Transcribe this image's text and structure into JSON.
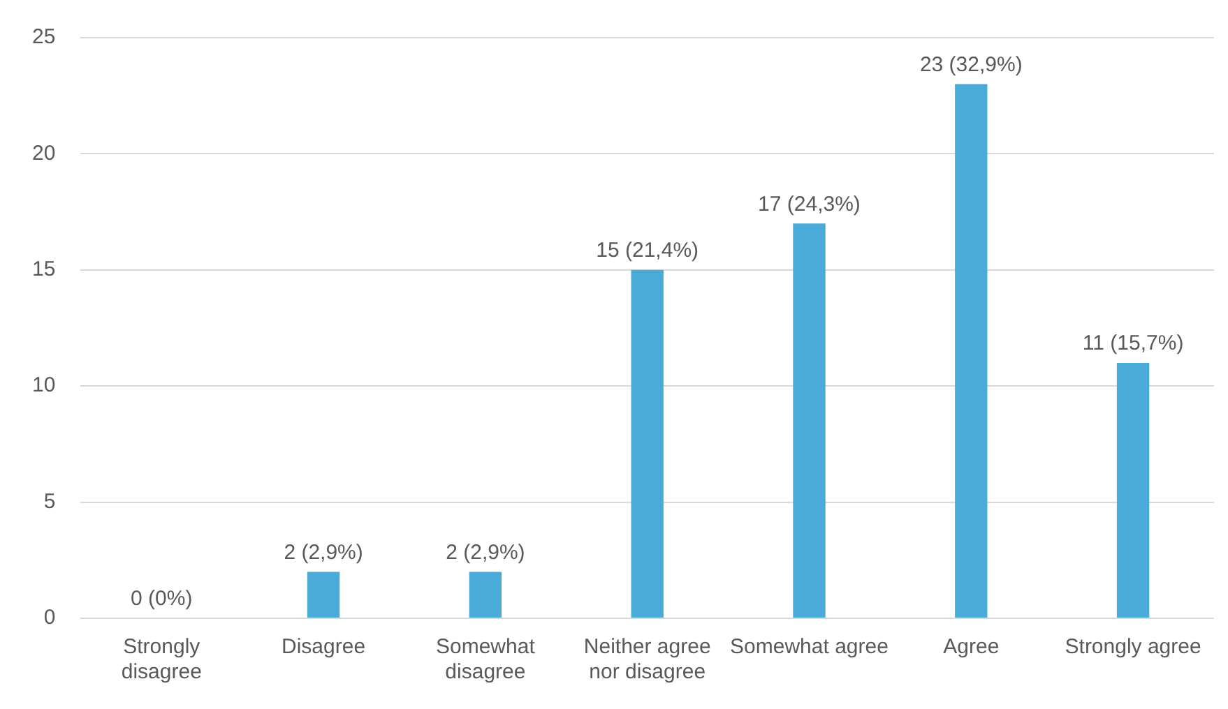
{
  "chart_data": {
    "type": "bar",
    "categories": [
      "Strongly disagree",
      "Disagree",
      "Somewhat disagree",
      "Neither agree nor disagree",
      "Somewhat agree",
      "Agree",
      "Strongly agree"
    ],
    "values": [
      0,
      2,
      2,
      15,
      17,
      23,
      11
    ],
    "value_labels": [
      "0 (0%)",
      "2 (2,9%)",
      "2 (2,9%)",
      "15 (21,4%)",
      "17 (24,3%)",
      "23 (32,9%)",
      "11 (15,7%)"
    ],
    "color": "#4aaad8",
    "ylim": [
      0,
      25
    ],
    "yticks": [
      0,
      5,
      10,
      15,
      20,
      25
    ],
    "grid": "y",
    "legend": false
  }
}
